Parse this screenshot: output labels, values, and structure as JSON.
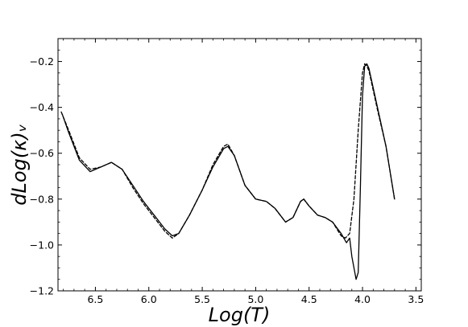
{
  "chart_data": {
    "type": "line",
    "title": "",
    "xlabel": "Log(T)",
    "ylabel": "dLog(κ)ᵥ",
    "xlim": [
      6.85,
      3.45
    ],
    "ylim": [
      -1.2,
      -0.1
    ],
    "x_reversed": true,
    "grid": false,
    "legend": "none",
    "x_ticks": [
      {
        "value": 6.5,
        "label": "6.5"
      },
      {
        "value": 6.0,
        "label": "6.0"
      },
      {
        "value": 5.5,
        "label": "5.5"
      },
      {
        "value": 5.0,
        "label": "5.0"
      },
      {
        "value": 4.5,
        "label": "4.5"
      },
      {
        "value": 4.0,
        "label": "4.0"
      },
      {
        "value": 3.5,
        "label": "3.5"
      }
    ],
    "y_ticks": [
      {
        "value": -0.2,
        "label": "−0.2"
      },
      {
        "value": -0.4,
        "label": "−0.4"
      },
      {
        "value": -0.6,
        "label": "−0.6"
      },
      {
        "value": -0.8,
        "label": "−0.8"
      },
      {
        "value": -1.0,
        "label": "−1.0"
      },
      {
        "value": -1.2,
        "label": "−1.2"
      }
    ],
    "series": [
      {
        "style": "solid",
        "color": "#000000",
        "points": [
          [
            6.81,
            -0.43
          ],
          [
            6.75,
            -0.51
          ],
          [
            6.65,
            -0.63
          ],
          [
            6.55,
            -0.68
          ],
          [
            6.45,
            -0.66
          ],
          [
            6.35,
            -0.64
          ],
          [
            6.25,
            -0.67
          ],
          [
            6.15,
            -0.74
          ],
          [
            6.05,
            -0.81
          ],
          [
            5.95,
            -0.87
          ],
          [
            5.85,
            -0.93
          ],
          [
            5.78,
            -0.96
          ],
          [
            5.72,
            -0.95
          ],
          [
            5.62,
            -0.87
          ],
          [
            5.5,
            -0.76
          ],
          [
            5.4,
            -0.66
          ],
          [
            5.3,
            -0.58
          ],
          [
            5.26,
            -0.57
          ],
          [
            5.2,
            -0.61
          ],
          [
            5.1,
            -0.74
          ],
          [
            5.0,
            -0.8
          ],
          [
            4.9,
            -0.81
          ],
          [
            4.82,
            -0.84
          ],
          [
            4.72,
            -0.9
          ],
          [
            4.65,
            -0.88
          ],
          [
            4.58,
            -0.81
          ],
          [
            4.55,
            -0.8
          ],
          [
            4.5,
            -0.83
          ],
          [
            4.42,
            -0.87
          ],
          [
            4.35,
            -0.88
          ],
          [
            4.28,
            -0.9
          ],
          [
            4.2,
            -0.95
          ],
          [
            4.15,
            -0.99
          ],
          [
            4.12,
            -0.97
          ],
          [
            4.1,
            -1.05
          ],
          [
            4.06,
            -1.15
          ],
          [
            4.04,
            -1.12
          ],
          [
            4.02,
            -0.75
          ],
          [
            4.0,
            -0.35
          ],
          [
            3.98,
            -0.22
          ],
          [
            3.96,
            -0.21
          ],
          [
            3.94,
            -0.23
          ],
          [
            3.86,
            -0.4
          ],
          [
            3.78,
            -0.57
          ],
          [
            3.7,
            -0.8
          ]
        ]
      },
      {
        "style": "dashed",
        "color": "#000000",
        "points": [
          [
            6.82,
            -0.42
          ],
          [
            6.75,
            -0.5
          ],
          [
            6.65,
            -0.62
          ],
          [
            6.55,
            -0.67
          ],
          [
            6.45,
            -0.66
          ],
          [
            6.35,
            -0.64
          ],
          [
            6.25,
            -0.67
          ],
          [
            6.15,
            -0.75
          ],
          [
            6.05,
            -0.82
          ],
          [
            5.95,
            -0.88
          ],
          [
            5.85,
            -0.94
          ],
          [
            5.78,
            -0.97
          ],
          [
            5.72,
            -0.95
          ],
          [
            5.62,
            -0.87
          ],
          [
            5.5,
            -0.76
          ],
          [
            5.4,
            -0.65
          ],
          [
            5.3,
            -0.57
          ],
          [
            5.26,
            -0.56
          ],
          [
            5.2,
            -0.61
          ],
          [
            5.1,
            -0.74
          ],
          [
            5.0,
            -0.8
          ],
          [
            4.9,
            -0.81
          ],
          [
            4.82,
            -0.84
          ],
          [
            4.72,
            -0.9
          ],
          [
            4.65,
            -0.88
          ],
          [
            4.58,
            -0.81
          ],
          [
            4.55,
            -0.8
          ],
          [
            4.5,
            -0.83
          ],
          [
            4.42,
            -0.87
          ],
          [
            4.35,
            -0.88
          ],
          [
            4.28,
            -0.9
          ],
          [
            4.2,
            -0.96
          ],
          [
            4.16,
            -0.97
          ],
          [
            4.12,
            -0.95
          ],
          [
            4.08,
            -0.8
          ],
          [
            4.04,
            -0.5
          ],
          [
            4.0,
            -0.25
          ],
          [
            3.98,
            -0.21
          ],
          [
            3.96,
            -0.22
          ],
          [
            3.94,
            -0.24
          ],
          [
            3.86,
            -0.41
          ],
          [
            3.78,
            -0.57
          ],
          [
            3.7,
            -0.8
          ]
        ]
      }
    ]
  }
}
